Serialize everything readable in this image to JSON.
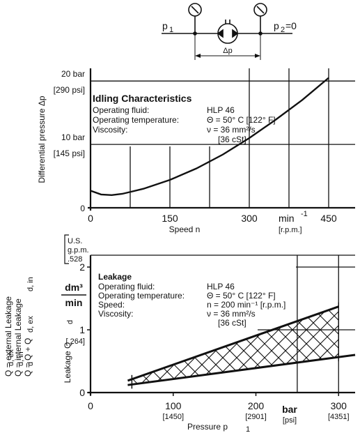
{
  "schematic": {
    "p1_label": "p",
    "p1_sub": "1",
    "p2_label": "p",
    "p2_sub": "2",
    "p2_value": "=0",
    "delta_p_label": "Δp"
  },
  "chart_data": [
    {
      "type": "line",
      "name": "idling",
      "xlabel": "Speed n",
      "ylabel": "Differential pressure Δp",
      "x_unit_label": "min",
      "x_unit_exp": "-1",
      "x_unit_alt": "[r.p.m.]",
      "xlim": [
        0,
        500
      ],
      "ylim": [
        0,
        22
      ],
      "x_ticks": [
        "0",
        "150",
        "300",
        "450"
      ],
      "x_tick_values": [
        0,
        150,
        300,
        450
      ],
      "y_ticks": [
        {
          "value": 0,
          "label": "0",
          "alt": ""
        },
        {
          "value": 10,
          "label": "10 bar",
          "alt": "[145 psi]"
        },
        {
          "value": 20,
          "label": "20 bar",
          "alt": "[290 psi]"
        }
      ],
      "grid": true,
      "title": "Idling Characteristics",
      "info_rows": [
        {
          "k": "Operating fluid:",
          "v": "HLP 46"
        },
        {
          "k": "Operating temperature:",
          "v": "Θ = 50° C [122° F]"
        },
        {
          "k": "Viscosity:",
          "v": "ν = 36 mm²/s"
        },
        {
          "k": "",
          "v": "[36 cSt]"
        }
      ],
      "series": [
        {
          "x": [
            0,
            20,
            40,
            60,
            80,
            100,
            150,
            200,
            250,
            300,
            350,
            400,
            450
          ],
          "y": [
            2.7,
            2.1,
            2.0,
            2.2,
            2.6,
            3.0,
            4.4,
            6.2,
            8.4,
            11.0,
            13.9,
            17.0,
            20.5
          ]
        }
      ]
    },
    {
      "type": "area",
      "name": "leakage",
      "xlabel": "Pressure p",
      "xlabel_sub": "1",
      "ylabel": "Leakage Q",
      "ylabel_sub": "d",
      "x_unit_label": "bar",
      "x_unit_alt": "[psi]",
      "xlim": [
        0,
        320
      ],
      "ylim": [
        0,
        2.0
      ],
      "x_ticks": [
        {
          "value": 0,
          "label": "0",
          "alt": ""
        },
        {
          "value": 100,
          "label": "100",
          "alt": "[1450]"
        },
        {
          "value": 200,
          "label": "200",
          "alt": "[2901]"
        },
        {
          "value": 300,
          "label": "300",
          "alt": "[4351]"
        }
      ],
      "y_ticks": [
        {
          "value": 0,
          "label": "0",
          "alt": ""
        },
        {
          "value": 1,
          "label": "1",
          "alt": "[.264]"
        },
        {
          "value": 2,
          "label": "2",
          "alt": ""
        }
      ],
      "y_unit_num": "dm³",
      "y_unit_den": "min",
      "y_unit_alt": [
        "U.S.",
        "g.p.m.",
        ".528"
      ],
      "title": "Leakage",
      "info_rows": [
        {
          "k": "Operating fluid:",
          "v": "HLP 46"
        },
        {
          "k": "Operating temperature:",
          "v": "Θ = 50° C [122° F]"
        },
        {
          "k": "Speed:",
          "v": "n = 200 min⁻¹ [r.p.m.]"
        },
        {
          "k": "Viscosity:",
          "v": "ν = 36 mm²/s"
        },
        {
          "k": "",
          "v": "[36 cSt]"
        }
      ],
      "series": [
        {
          "name": "upper",
          "x": [
            45,
            300
          ],
          "y": [
            0.19,
            1.37
          ]
        },
        {
          "name": "lower",
          "x": [
            45,
            320
          ],
          "y": [
            0.12,
            0.6
          ]
        }
      ],
      "side_legend": [
        "Q   = external Leakage",
        "Q   = internal Leakage",
        "Q   = Q        + Q"
      ],
      "side_subs": [
        "d, ex",
        "d, in",
        "d",
        "d, ex",
        "d, in"
      ]
    }
  ]
}
